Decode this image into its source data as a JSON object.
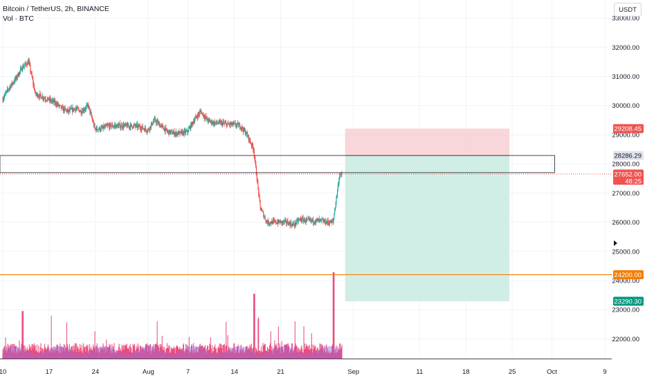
{
  "legend": {
    "symbol_line": "Bitcoin / TetherUS, 2h, BINANCE",
    "volume_line": "Vol · BTC"
  },
  "currency_button": "USDT",
  "price_tags": {
    "stop": "29208.45",
    "box_top": "28286.29",
    "current_price": "27652.00",
    "countdown": "48:25",
    "level": "24200.00",
    "target": "23290.30"
  },
  "colors": {
    "candle_up": "#26a69a",
    "candle_down": "#ef5350",
    "stop_zone": "#f7c8cc",
    "target_zone": "#c9ebe2",
    "level_line": "#f57c00",
    "current_price_tag": "#ef5350",
    "target_tag": "#089981",
    "volume_bar": "#e6376e",
    "volume_ma": "#9c6ad6"
  },
  "chart_data": {
    "type": "candlestick",
    "symbol": "Bitcoin / TetherUS",
    "interval": "2h",
    "exchange": "BINANCE",
    "y_axis": {
      "unit": "USDT",
      "range": [
        21300,
        33500
      ],
      "ticks": [
        22000,
        23000,
        24000,
        25000,
        26000,
        27000,
        28000,
        29000,
        30000,
        31000,
        32000,
        33000
      ],
      "tick_labels": [
        "22000.00",
        "23000.00",
        "24000.00",
        "25000.00",
        "26000.00",
        "27000.00",
        "28000.00",
        "29000.00",
        "30000.00",
        "31000.00",
        "32000.00",
        "33000.00"
      ]
    },
    "x_axis": {
      "range": [
        "2023-07-10",
        "2023-10-09"
      ],
      "ticks": [
        "2023-07-10",
        "2023-07-17",
        "2023-07-24",
        "2023-08-01",
        "2023-08-07",
        "2023-08-14",
        "2023-08-21",
        "2023-09-01",
        "2023-09-11",
        "2023-09-18",
        "2023-09-25",
        "2023-10-01",
        "2023-10-09"
      ],
      "tick_labels": [
        "10",
        "17",
        "24",
        "Aug",
        "7",
        "14",
        "21",
        "Sep",
        "11",
        "18",
        "25",
        "Oct",
        "9"
      ]
    },
    "price_path": [
      [
        "2023-07-10",
        30200
      ],
      [
        "2023-07-11",
        30600
      ],
      [
        "2023-07-12",
        30900
      ],
      [
        "2023-07-13",
        31300
      ],
      [
        "2023-07-14",
        31500
      ],
      [
        "2023-07-15",
        30400
      ],
      [
        "2023-07-16",
        30300
      ],
      [
        "2023-07-17",
        30200
      ],
      [
        "2023-07-18",
        30100
      ],
      [
        "2023-07-19",
        29900
      ],
      [
        "2023-07-20",
        29800
      ],
      [
        "2023-07-21",
        29900
      ],
      [
        "2023-07-22",
        29800
      ],
      [
        "2023-07-23",
        30000
      ],
      [
        "2023-07-24",
        29200
      ],
      [
        "2023-07-25",
        29200
      ],
      [
        "2023-07-26",
        29300
      ],
      [
        "2023-07-27",
        29300
      ],
      [
        "2023-07-28",
        29300
      ],
      [
        "2023-07-29",
        29300
      ],
      [
        "2023-07-30",
        29300
      ],
      [
        "2023-07-31",
        29250
      ],
      [
        "2023-08-01",
        29150
      ],
      [
        "2023-08-02",
        29500
      ],
      [
        "2023-08-03",
        29300
      ],
      [
        "2023-08-04",
        29100
      ],
      [
        "2023-08-05",
        29050
      ],
      [
        "2023-08-06",
        29050
      ],
      [
        "2023-08-07",
        29100
      ],
      [
        "2023-08-08",
        29500
      ],
      [
        "2023-08-09",
        29800
      ],
      [
        "2023-08-10",
        29500
      ],
      [
        "2023-08-11",
        29400
      ],
      [
        "2023-08-12",
        29400
      ],
      [
        "2023-08-13",
        29350
      ],
      [
        "2023-08-14",
        29350
      ],
      [
        "2023-08-15",
        29300
      ],
      [
        "2023-08-16",
        29000
      ],
      [
        "2023-08-17",
        28500
      ],
      [
        "2023-08-18",
        26500
      ],
      [
        "2023-08-19",
        26000
      ],
      [
        "2023-08-20",
        26000
      ],
      [
        "2023-08-21",
        26000
      ],
      [
        "2023-08-22",
        26000
      ],
      [
        "2023-08-23",
        25900
      ],
      [
        "2023-08-24",
        26100
      ],
      [
        "2023-08-25",
        26050
      ],
      [
        "2023-08-26",
        26050
      ],
      [
        "2023-08-27",
        26050
      ],
      [
        "2023-08-28",
        26000
      ],
      [
        "2023-08-29",
        26000
      ],
      [
        "2023-08-30",
        27652
      ]
    ],
    "annotations": {
      "position_tool": "short",
      "entry_price": 28286.29,
      "stop_price": 29208.45,
      "target_price": 23290.3,
      "current_price": 27652.0,
      "horizontal_level": 24200.0,
      "box_top": 28286.29,
      "box_bottom": 27700
    },
    "volume": {
      "label": "Vol · BTC",
      "peak_dates": [
        "2023-07-13",
        "2023-08-17",
        "2023-08-29"
      ]
    }
  }
}
